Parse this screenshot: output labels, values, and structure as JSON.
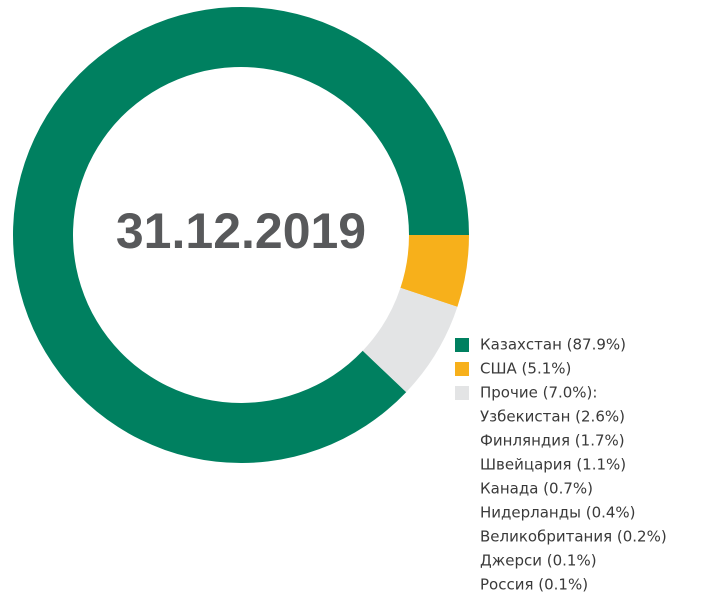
{
  "chart_data": {
    "type": "donut",
    "title": "31.12.2019",
    "categories": [
      "Казахстан (87.9%)",
      "США (5.1%)",
      "Прочие (7.0%):"
    ],
    "values": [
      87.9,
      5.1,
      7.0
    ],
    "colors": [
      "#008060",
      "#f7b01b",
      "#e3e4e5"
    ],
    "breakdown": [
      "Узбекистан (2.6%)",
      "Финляндия (1.7%)",
      "Швейцария (1.1%)",
      "Канада (0.7%)",
      "Нидерланды (0.4%)",
      "Великобритания (0.2%)",
      "Джерси (0.1%)",
      "Россия (0.1%)"
    ]
  }
}
